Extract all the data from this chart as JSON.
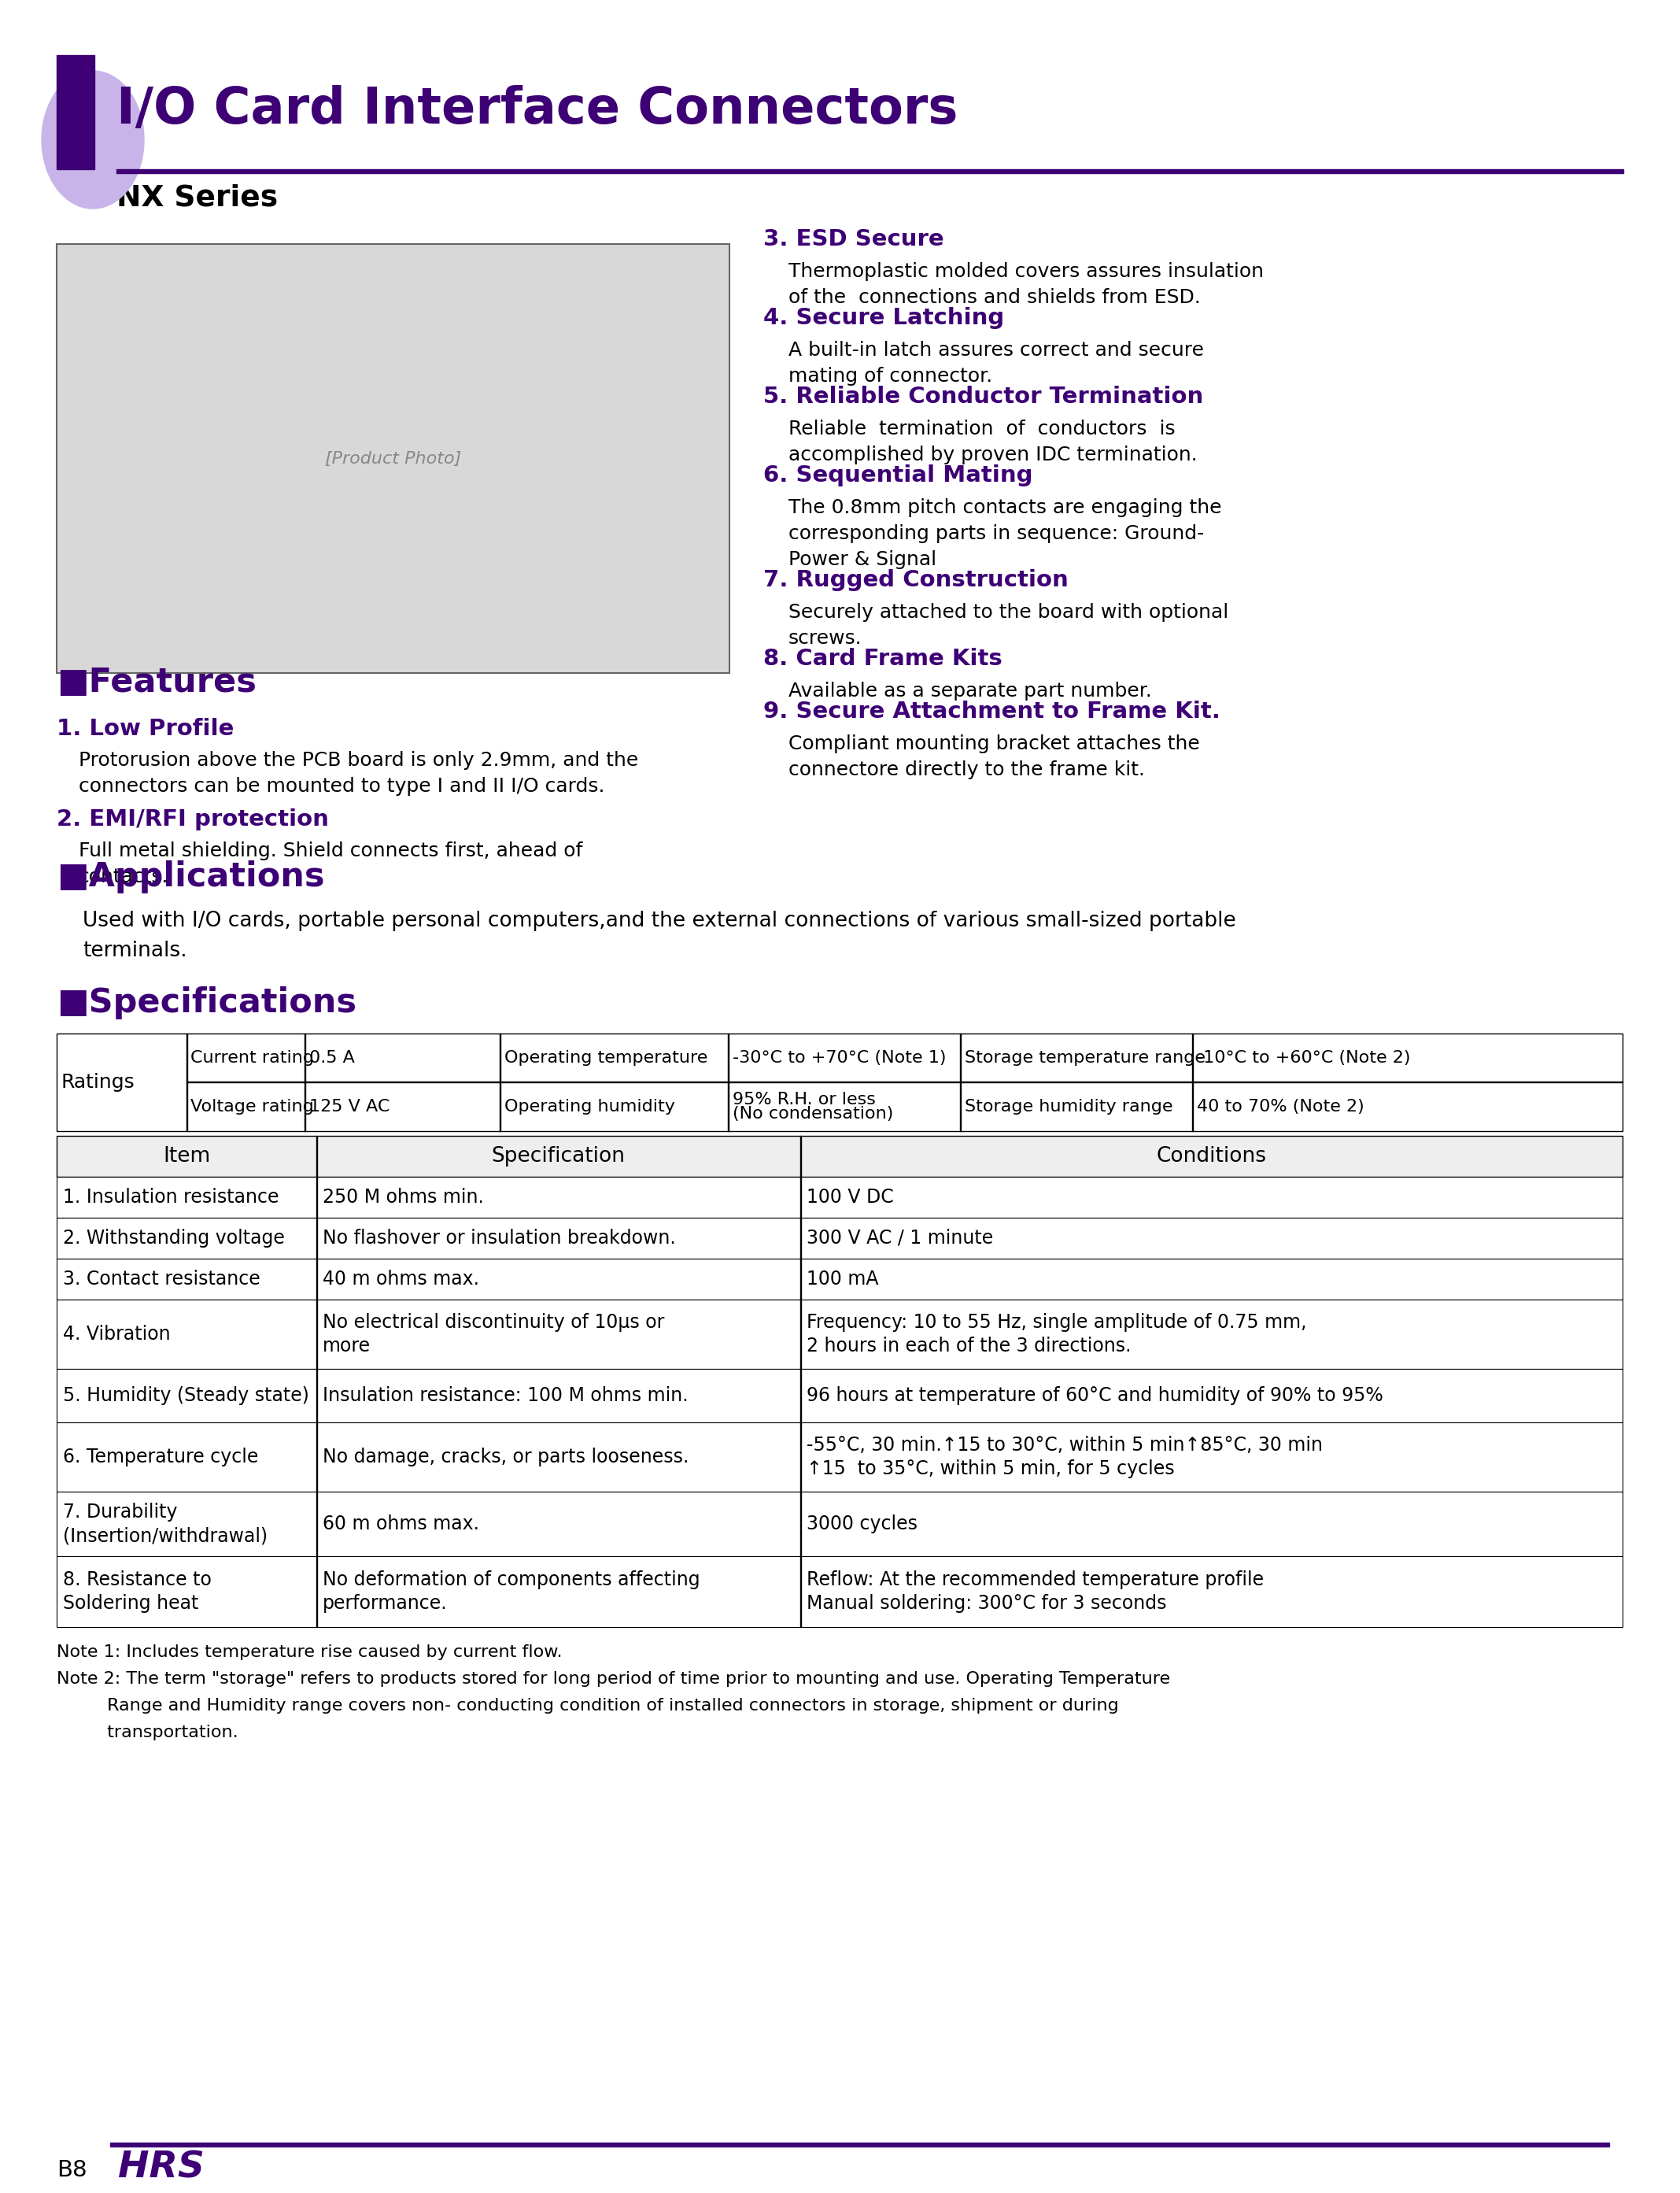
{
  "title": "I/O Card Interface Connectors",
  "subtitle": "NX Series",
  "purple_dark": "#3d0075",
  "purple_light": "#c8b4e8",
  "black": "#000000",
  "white": "#ffffff",
  "features_title": "■Features",
  "features_left": [
    {
      "num": "1. Low Profile",
      "text": "Protorusion above the PCB board is only 2.9mm, and the\nconnectors can be mounted to type I and II I/O cards."
    },
    {
      "num": "2. EMI/RFI protection",
      "text": "Full metal shielding. Shield connects first, ahead of\ncontacts."
    }
  ],
  "features_right": [
    {
      "num": "3. ESD Secure",
      "text": "Thermoplastic molded covers assures insulation\nof the  connections and shields from ESD."
    },
    {
      "num": "4. Secure Latching",
      "text": "A built-in latch assures correct and secure\nmating of connector."
    },
    {
      "num": "5. Reliable Conductor Termination",
      "text": "Reliable  termination  of  conductors  is\naccomplished by proven IDC termination."
    },
    {
      "num": "6. Sequential Mating",
      "text": "The 0.8mm pitch contacts are engaging the\ncorresponding parts in sequence: Ground-\nPower & Signal"
    },
    {
      "num": "7. Rugged Construction",
      "text": "Securely attached to the board with optional\nscrews."
    },
    {
      "num": "8. Card Frame Kits",
      "text": "Available as a separate part number."
    },
    {
      "num": "9. Secure Attachment to Frame Kit.",
      "text": "Compliant mounting bracket attaches the\nconnectore directly to the frame kit."
    }
  ],
  "applications_title": "■Applications",
  "applications_text": "Used with I/O cards, portable personal computers,and the external connections of various small-sized portable\nterminals.",
  "specs_title": "■Specifications",
  "ratings_row1": [
    "Current rating",
    "0.5 A",
    "Operating temperature",
    "-30°C to +70°C (Note 1)",
    "Storage temperature range",
    "-10°C to +60°C (Note 2)"
  ],
  "ratings_row2": [
    "Voltage rating",
    "125 V AC",
    "Operating humidity",
    "95% R.H. or less\n(No condensation)",
    "Storage humidity range",
    "40 to 70% (Note 2)"
  ],
  "specs_headers": [
    "Item",
    "Specification",
    "Conditions"
  ],
  "specs_rows": [
    [
      "1. Insulation resistance",
      "250 M ohms min.",
      "100 V DC"
    ],
    [
      "2. Withstanding voltage",
      "No flashover or insulation breakdown.",
      "300 V AC / 1 minute"
    ],
    [
      "3. Contact resistance",
      "40 m ohms max.",
      "100 mA"
    ],
    [
      "4. Vibration",
      "No electrical discontinuity of 10μs or\nmore",
      "Frequency: 10 to 55 Hz, single amplitude of 0.75 mm,\n2 hours in each of the 3 directions."
    ],
    [
      "5. Humidity (Steady state)",
      "Insulation resistance: 100 M ohms min.",
      "96 hours at temperature of 60°C and humidity of 90% to 95%"
    ],
    [
      "6. Temperature cycle",
      "No damage, cracks, or parts looseness.",
      "-55°C, 30 min.↑15 to 30°C, within 5 min↑85°C, 30 min\n↑15  to 35°C, within 5 min, for 5 cycles"
    ],
    [
      "7. Durability\n(Insertion/withdrawal)",
      "60 m ohms max.",
      "3000 cycles"
    ],
    [
      "8. Resistance to\nSoldering heat",
      "No deformation of components affecting\nperformance.",
      "Reflow: At the recommended temperature profile\nManual soldering: 300°C for 3 seconds"
    ]
  ],
  "note1": "Note 1: Includes temperature rise caused by current flow.",
  "note2_line1": "Note 2: The term \"storage\" refers to products stored for long period of time prior to mounting and use. Operating Temperature",
  "note2_line2": "         Range and Humidity range covers non- conducting condition of installed connectors in storage, shipment or during",
  "note2_line3": "         transportation.",
  "page_label": "B8"
}
